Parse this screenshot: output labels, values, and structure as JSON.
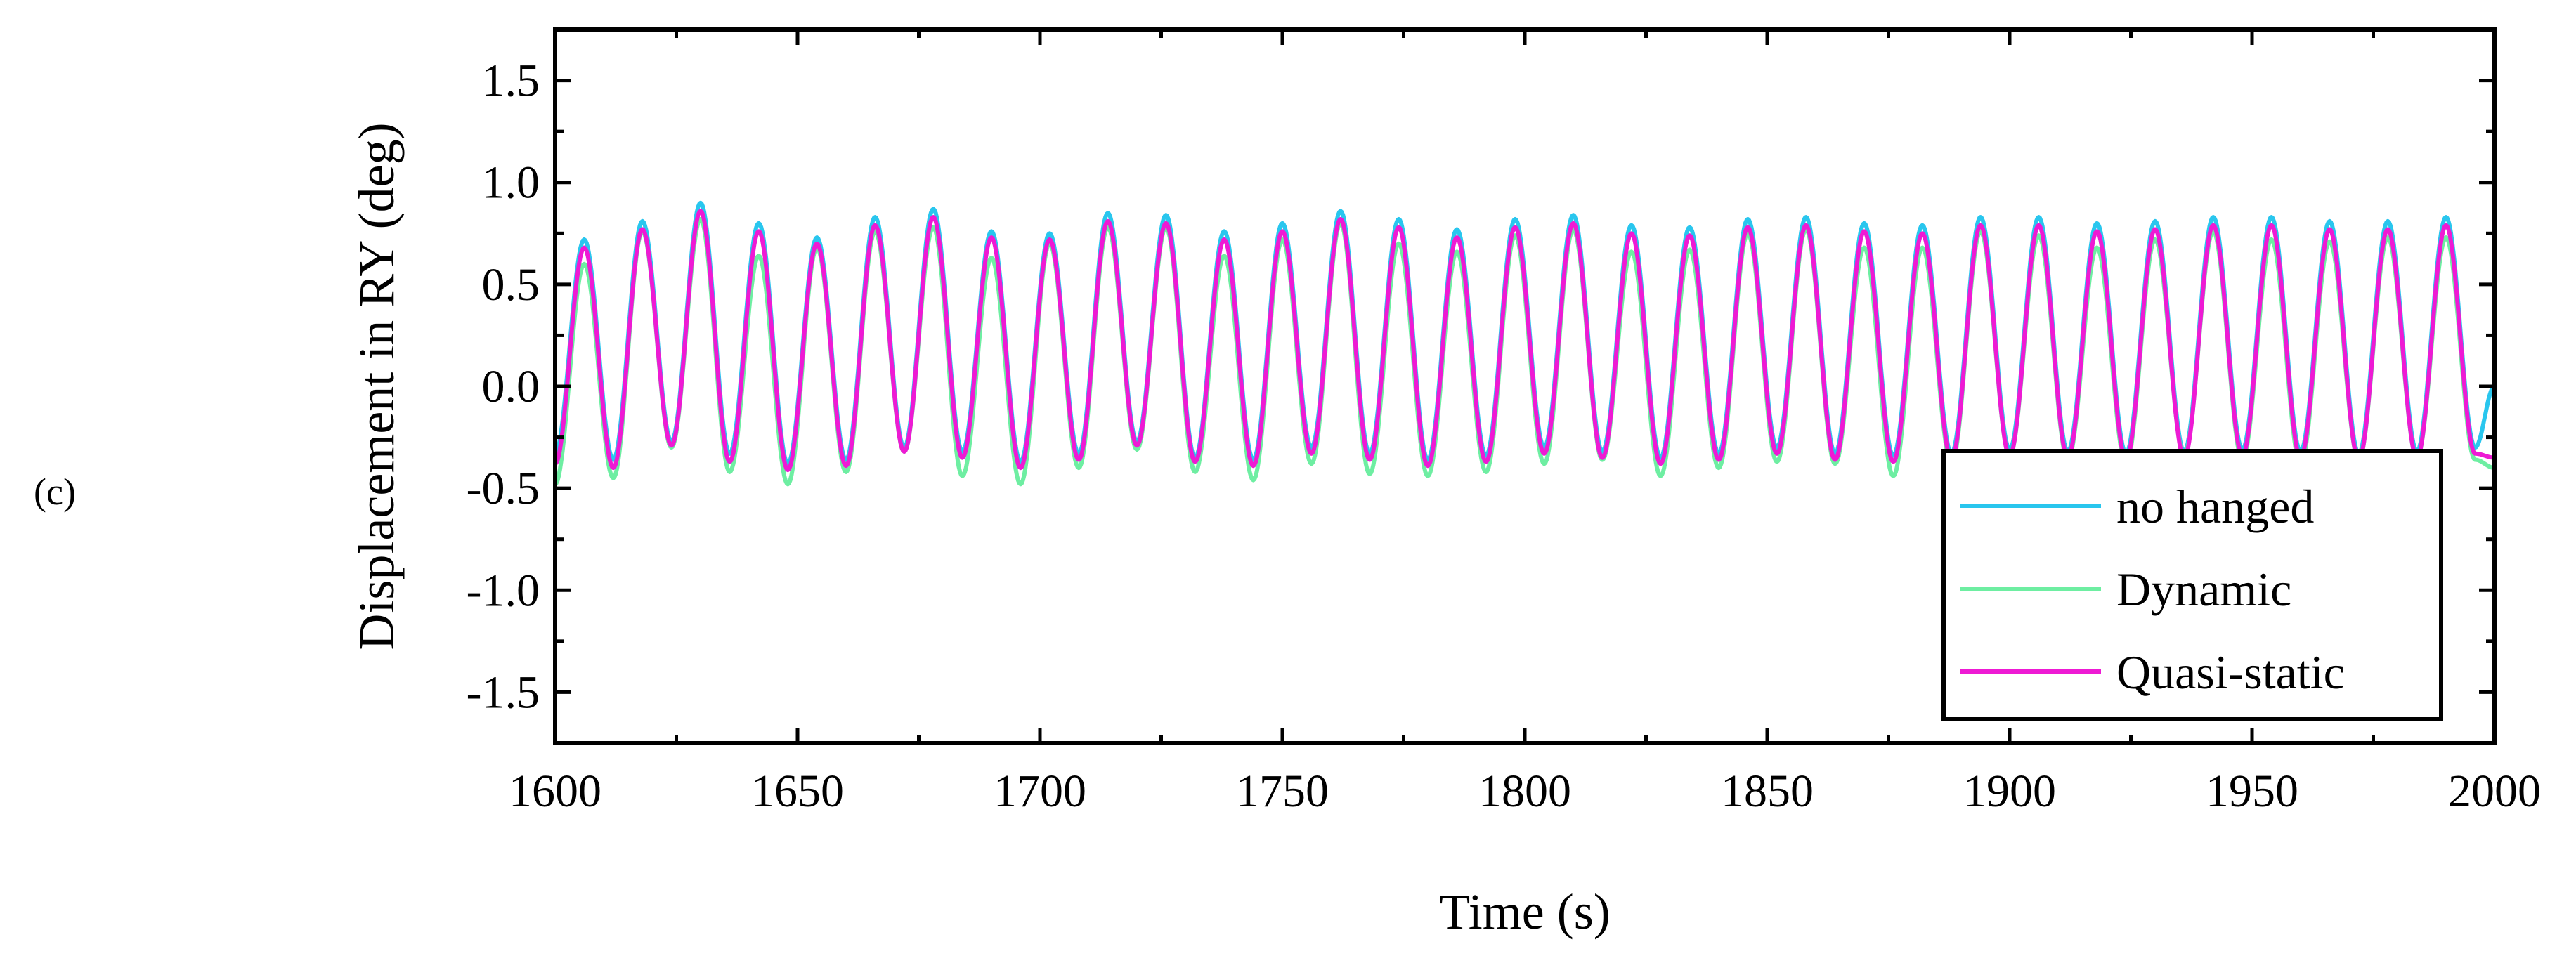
{
  "panel_label": "(c)",
  "chart_data": {
    "type": "line",
    "title": "",
    "xlabel": "Time  (s)",
    "ylabel": "Displacement in RY  (deg)",
    "xlim": [
      1600,
      2000
    ],
    "ylim": [
      -1.75,
      1.75
    ],
    "xticks": [
      1600,
      1650,
      1700,
      1750,
      1800,
      1850,
      1900,
      1950,
      2000
    ],
    "xtick_labels": [
      "1600",
      "1650",
      "1700",
      "1750",
      "1800",
      "1850",
      "1900",
      "1950",
      "2000"
    ],
    "yticks": [
      1.5,
      1.0,
      0.5,
      0.0,
      -0.5,
      -1.0,
      -1.5
    ],
    "ytick_labels": [
      "1.5",
      "1.0",
      "0.5",
      "0.0",
      "-0.5",
      "-1.0",
      "-1.5"
    ],
    "grid": false,
    "legend_position": "bottom-right",
    "period_s": 12.0,
    "series": [
      {
        "name": "no hanged",
        "color": "#29C6EE",
        "x": [
          1600,
          1606,
          1612,
          1618,
          1624,
          1630,
          1636,
          1642,
          1648,
          1654,
          1660,
          1666,
          1672,
          1678,
          1684,
          1690,
          1696,
          1702,
          1708,
          1714,
          1720,
          1726,
          1732,
          1738,
          1744,
          1750,
          1756,
          1762,
          1768,
          1774,
          1780,
          1786,
          1792,
          1798,
          1804,
          1810,
          1816,
          1822,
          1828,
          1834,
          1840,
          1846,
          1852,
          1858,
          1864,
          1870,
          1876,
          1882,
          1888,
          1894,
          1900,
          1906,
          1912,
          1918,
          1924,
          1930,
          1936,
          1942,
          1948,
          1954,
          1960,
          1966,
          1972,
          1978,
          1984,
          1990,
          1996,
          2000
        ],
        "y": [
          -0.33,
          0.72,
          -0.36,
          0.81,
          -0.27,
          0.9,
          -0.33,
          0.8,
          -0.38,
          0.73,
          -0.36,
          0.83,
          -0.3,
          0.87,
          -0.32,
          0.76,
          -0.37,
          0.75,
          -0.33,
          0.85,
          -0.27,
          0.84,
          -0.35,
          0.76,
          -0.36,
          0.8,
          -0.3,
          0.86,
          -0.33,
          0.82,
          -0.36,
          0.77,
          -0.34,
          0.82,
          -0.3,
          0.84,
          -0.32,
          0.79,
          -0.35,
          0.78,
          -0.33,
          0.82,
          -0.3,
          0.83,
          -0.33,
          0.8,
          -0.34,
          0.79,
          -0.33,
          0.83,
          -0.31,
          0.83,
          -0.32,
          0.8,
          -0.33,
          0.81,
          -0.32,
          0.83,
          -0.31,
          0.83,
          -0.32,
          0.81,
          -0.33,
          0.81,
          -0.32,
          0.83,
          -0.3,
          0.0
        ]
      },
      {
        "name": "Dynamic",
        "color": "#6EEEA2",
        "x": [
          1600,
          1606,
          1612,
          1618,
          1624,
          1630,
          1636,
          1642,
          1648,
          1654,
          1660,
          1666,
          1672,
          1678,
          1684,
          1690,
          1696,
          1702,
          1708,
          1714,
          1720,
          1726,
          1732,
          1738,
          1744,
          1750,
          1756,
          1762,
          1768,
          1774,
          1780,
          1786,
          1792,
          1798,
          1804,
          1810,
          1816,
          1822,
          1828,
          1834,
          1840,
          1846,
          1852,
          1858,
          1864,
          1870,
          1876,
          1882,
          1888,
          1894,
          1900,
          1906,
          1912,
          1918,
          1924,
          1930,
          1936,
          1942,
          1948,
          1954,
          1960,
          1966,
          1972,
          1978,
          1984,
          1990,
          1996,
          2000
        ],
        "y": [
          -0.48,
          0.6,
          -0.45,
          0.76,
          -0.3,
          0.82,
          -0.42,
          0.64,
          -0.48,
          0.68,
          -0.42,
          0.76,
          -0.32,
          0.78,
          -0.44,
          0.63,
          -0.48,
          0.7,
          -0.4,
          0.78,
          -0.31,
          0.78,
          -0.42,
          0.64,
          -0.46,
          0.72,
          -0.38,
          0.8,
          -0.43,
          0.7,
          -0.44,
          0.66,
          -0.42,
          0.74,
          -0.38,
          0.77,
          -0.36,
          0.66,
          -0.44,
          0.67,
          -0.4,
          0.75,
          -0.37,
          0.77,
          -0.38,
          0.68,
          -0.44,
          0.68,
          -0.38,
          0.76,
          -0.34,
          0.74,
          -0.36,
          0.68,
          -0.38,
          0.72,
          -0.34,
          0.76,
          -0.36,
          0.72,
          -0.38,
          0.71,
          -0.36,
          0.73,
          -0.35,
          0.73,
          -0.36,
          -0.4
        ]
      },
      {
        "name": "Quasi-static",
        "color": "#EE1AD4",
        "x": [
          1600,
          1606,
          1612,
          1618,
          1624,
          1630,
          1636,
          1642,
          1648,
          1654,
          1660,
          1666,
          1672,
          1678,
          1684,
          1690,
          1696,
          1702,
          1708,
          1714,
          1720,
          1726,
          1732,
          1738,
          1744,
          1750,
          1756,
          1762,
          1768,
          1774,
          1780,
          1786,
          1792,
          1798,
          1804,
          1810,
          1816,
          1822,
          1828,
          1834,
          1840,
          1846,
          1852,
          1858,
          1864,
          1870,
          1876,
          1882,
          1888,
          1894,
          1900,
          1906,
          1912,
          1918,
          1924,
          1930,
          1936,
          1942,
          1948,
          1954,
          1960,
          1966,
          1972,
          1978,
          1984,
          1990,
          1996,
          2000
        ],
        "y": [
          -0.38,
          0.68,
          -0.4,
          0.77,
          -0.29,
          0.86,
          -0.37,
          0.76,
          -0.41,
          0.7,
          -0.39,
          0.79,
          -0.32,
          0.83,
          -0.35,
          0.73,
          -0.4,
          0.72,
          -0.36,
          0.81,
          -0.29,
          0.8,
          -0.37,
          0.72,
          -0.39,
          0.76,
          -0.33,
          0.82,
          -0.36,
          0.78,
          -0.39,
          0.73,
          -0.37,
          0.78,
          -0.33,
          0.8,
          -0.35,
          0.75,
          -0.38,
          0.74,
          -0.36,
          0.78,
          -0.33,
          0.79,
          -0.36,
          0.76,
          -0.37,
          0.75,
          -0.36,
          0.79,
          -0.34,
          0.79,
          -0.35,
          0.76,
          -0.36,
          0.77,
          -0.35,
          0.79,
          -0.34,
          0.79,
          -0.35,
          0.77,
          -0.36,
          0.77,
          -0.35,
          0.79,
          -0.33,
          -0.35
        ]
      }
    ]
  }
}
